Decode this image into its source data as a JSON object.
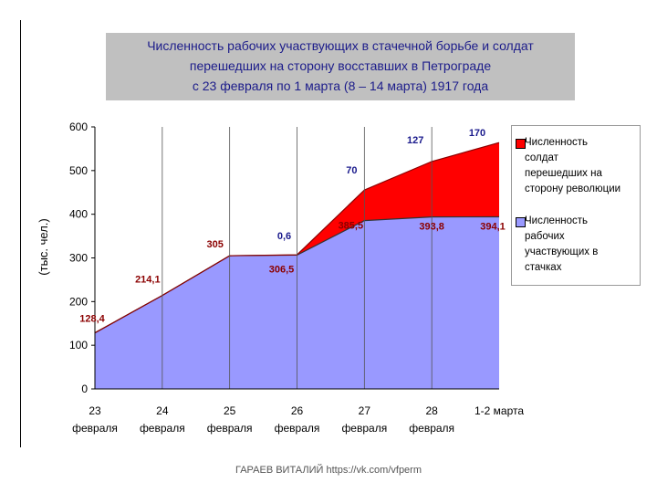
{
  "title": {
    "lines": [
      "Численность рабочих участвующих в стачечной борьбе и солдат",
      "перешедших на сторону восставших в Петрограде",
      "с 23 февраля по 1 марта  (8 – 14 марта) 1917 года"
    ]
  },
  "footer": "ГАРАЕВ ВИТАЛИЙ https://vk.com/vfperm",
  "chart_data": {
    "type": "area",
    "stacked": true,
    "categories": [
      {
        "day": "23",
        "month": "февраля"
      },
      {
        "day": "24",
        "month": "февраля"
      },
      {
        "day": "25",
        "month": "февраля"
      },
      {
        "day": "26",
        "month": "февраля"
      },
      {
        "day": "27",
        "month": "февраля"
      },
      {
        "day": "28",
        "month": "февраля"
      },
      {
        "day": "1-2 марта",
        "month": ""
      }
    ],
    "ylabel": "(тыс. чел.)",
    "ylim": [
      0,
      600
    ],
    "yticks": [
      "0",
      "100",
      "200",
      "300",
      "400",
      "500",
      "600"
    ],
    "grid": "vertical",
    "legend_position": "right",
    "series": [
      {
        "name": "Численность рабочих участвующих в стачках",
        "color": "#9999ff",
        "values": [
          128.4,
          214.1,
          305,
          306.5,
          385.5,
          393.8,
          394.1
        ],
        "labels": [
          "128,4",
          "214,1",
          "305",
          "306,5",
          "385,5",
          "393,8",
          "394,1"
        ],
        "label_color": "#8b0000"
      },
      {
        "name": "Численность солдат перешедших на сторону революции",
        "color": "#ff0000",
        "values": [
          0,
          0,
          0,
          0.6,
          70,
          127,
          170
        ],
        "labels": [
          "",
          "",
          "",
          "0,6",
          "70",
          "127",
          "170"
        ],
        "label_color": "#1a1a8c"
      }
    ],
    "legend": [
      {
        "lines": [
          "Численность",
          "солдат",
          "перешедших на",
          "сторону революции"
        ],
        "color": "#ff0000"
      },
      {
        "lines": [
          "Численность",
          "рабочих",
          "участвующих в",
          "стачках"
        ],
        "color": "#9999ff"
      }
    ]
  }
}
